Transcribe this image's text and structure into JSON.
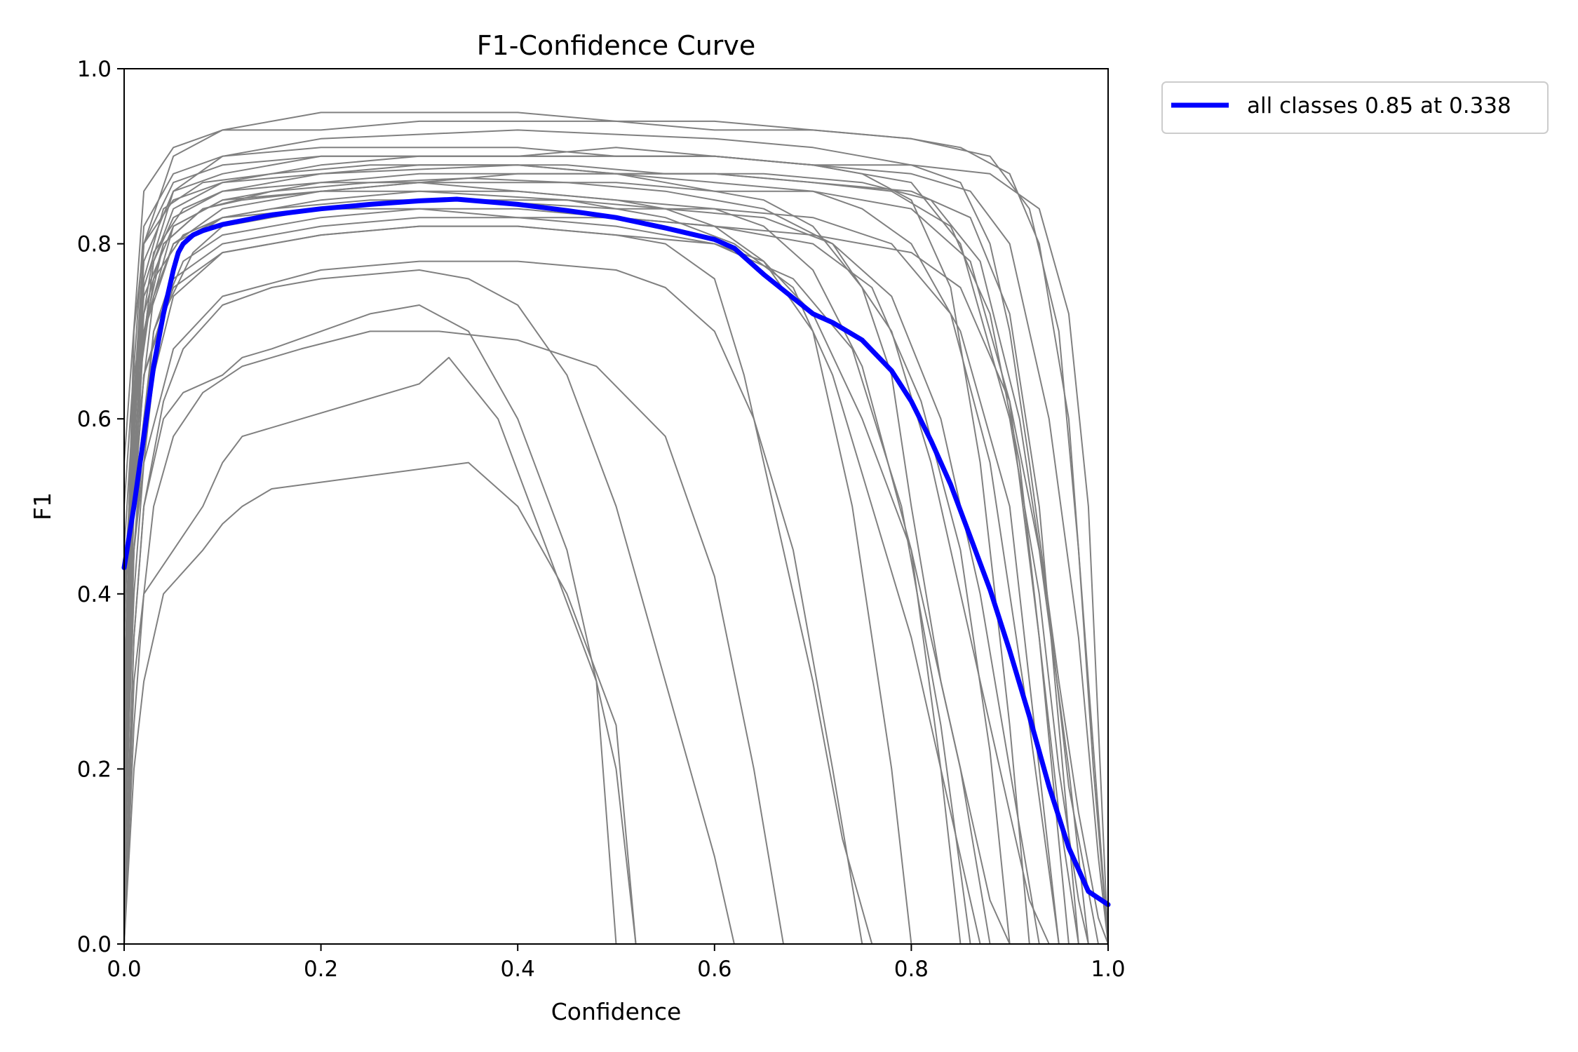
{
  "chart_data": {
    "type": "line",
    "title": "F1-Confidence Curve",
    "xlabel": "Confidence",
    "ylabel": "F1",
    "xlim": [
      0.0,
      1.0
    ],
    "ylim": [
      0.0,
      1.0
    ],
    "x_ticks": [
      "0.0",
      "0.2",
      "0.4",
      "0.6",
      "0.8",
      "1.0"
    ],
    "y_ticks": [
      "0.0",
      "0.2",
      "0.4",
      "0.6",
      "0.8",
      "1.0"
    ],
    "grid": false,
    "legend_position": "outside-upper-right",
    "legend": [
      "all classes 0.85 at 0.338"
    ],
    "colors": {
      "class_curves": "#808080",
      "all_classes": "#0000ff"
    },
    "series": [
      {
        "name": "all classes 0.85 at 0.338",
        "x": [
          0.0,
          0.01,
          0.02,
          0.03,
          0.04,
          0.05,
          0.055,
          0.06,
          0.07,
          0.08,
          0.1,
          0.15,
          0.2,
          0.25,
          0.3,
          0.338,
          0.4,
          0.45,
          0.5,
          0.55,
          0.6,
          0.62,
          0.65,
          0.7,
          0.72,
          0.75,
          0.78,
          0.8,
          0.82,
          0.84,
          0.86,
          0.88,
          0.9,
          0.92,
          0.94,
          0.96,
          0.98,
          1.0
        ],
        "y": [
          0.43,
          0.5,
          0.58,
          0.66,
          0.72,
          0.77,
          0.79,
          0.8,
          0.81,
          0.815,
          0.822,
          0.833,
          0.84,
          0.845,
          0.849,
          0.851,
          0.845,
          0.838,
          0.83,
          0.818,
          0.805,
          0.795,
          0.765,
          0.72,
          0.71,
          0.69,
          0.655,
          0.62,
          0.575,
          0.525,
          0.465,
          0.405,
          0.335,
          0.26,
          0.18,
          0.11,
          0.06,
          0.045
        ]
      }
    ],
    "class_curves": [
      {
        "x": [
          0.0,
          0.005,
          0.01,
          0.02,
          0.05,
          0.1,
          0.2,
          0.3,
          0.4,
          0.5,
          0.55,
          0.6,
          0.65,
          0.7,
          0.75,
          0.78,
          0.8,
          0.83,
          0.86,
          0.88,
          0.9
        ],
        "y": [
          0.0,
          0.5,
          0.7,
          0.8,
          0.85,
          0.87,
          0.88,
          0.885,
          0.89,
          0.88,
          0.87,
          0.86,
          0.85,
          0.82,
          0.75,
          0.65,
          0.5,
          0.3,
          0.15,
          0.05,
          0.0
        ]
      },
      {
        "x": [
          0.0,
          0.01,
          0.03,
          0.05,
          0.1,
          0.2,
          0.3,
          0.4,
          0.5,
          0.6,
          0.7,
          0.8,
          0.85,
          0.9,
          0.93,
          0.95,
          0.97,
          0.98
        ],
        "y": [
          0.1,
          0.6,
          0.78,
          0.84,
          0.87,
          0.89,
          0.9,
          0.9,
          0.91,
          0.9,
          0.89,
          0.87,
          0.8,
          0.6,
          0.4,
          0.2,
          0.05,
          0.0
        ]
      },
      {
        "x": [
          0.0,
          0.01,
          0.02,
          0.04,
          0.08,
          0.15,
          0.25,
          0.35,
          0.45,
          0.55,
          0.65,
          0.72,
          0.78,
          0.82,
          0.86,
          0.9,
          0.92,
          0.94
        ],
        "y": [
          0.2,
          0.55,
          0.72,
          0.8,
          0.84,
          0.86,
          0.87,
          0.875,
          0.87,
          0.86,
          0.84,
          0.8,
          0.7,
          0.55,
          0.35,
          0.15,
          0.05,
          0.0
        ]
      },
      {
        "x": [
          0.0,
          0.02,
          0.05,
          0.1,
          0.2,
          0.4,
          0.6,
          0.7,
          0.75,
          0.8,
          0.85,
          0.88,
          0.9,
          0.92,
          0.95,
          0.97,
          0.99,
          1.0
        ],
        "y": [
          0.3,
          0.75,
          0.86,
          0.9,
          0.92,
          0.93,
          0.92,
          0.91,
          0.9,
          0.89,
          0.87,
          0.8,
          0.7,
          0.55,
          0.3,
          0.15,
          0.03,
          0.0
        ]
      },
      {
        "x": [
          0.0,
          0.01,
          0.03,
          0.06,
          0.1,
          0.2,
          0.3,
          0.45,
          0.55,
          0.62,
          0.68,
          0.72,
          0.76,
          0.8,
          0.84,
          0.87
        ],
        "y": [
          0.05,
          0.45,
          0.7,
          0.8,
          0.83,
          0.85,
          0.86,
          0.85,
          0.83,
          0.8,
          0.75,
          0.65,
          0.5,
          0.35,
          0.15,
          0.0
        ]
      },
      {
        "x": [
          0.0,
          0.02,
          0.05,
          0.1,
          0.15,
          0.2,
          0.3,
          0.4,
          0.5,
          0.6,
          0.7,
          0.8,
          0.85,
          0.9,
          0.93,
          0.96,
          0.98,
          1.0
        ],
        "y": [
          0.4,
          0.8,
          0.9,
          0.93,
          0.94,
          0.95,
          0.95,
          0.95,
          0.94,
          0.94,
          0.93,
          0.92,
          0.91,
          0.88,
          0.8,
          0.6,
          0.3,
          0.0
        ]
      },
      {
        "x": [
          0.0,
          0.01,
          0.02,
          0.05,
          0.1,
          0.2,
          0.3,
          0.4,
          0.5,
          0.55,
          0.6,
          0.63,
          0.66,
          0.7,
          0.73,
          0.76
        ],
        "y": [
          0.15,
          0.5,
          0.65,
          0.75,
          0.79,
          0.81,
          0.82,
          0.82,
          0.81,
          0.8,
          0.76,
          0.65,
          0.5,
          0.3,
          0.12,
          0.0
        ]
      },
      {
        "x": [
          0.0,
          0.01,
          0.03,
          0.05,
          0.1,
          0.2,
          0.3,
          0.4,
          0.5,
          0.6,
          0.7,
          0.75,
          0.8,
          0.85,
          0.9,
          0.92,
          0.95
        ],
        "y": [
          0.25,
          0.6,
          0.78,
          0.83,
          0.86,
          0.88,
          0.89,
          0.89,
          0.88,
          0.87,
          0.86,
          0.84,
          0.8,
          0.7,
          0.5,
          0.3,
          0.0
        ]
      },
      {
        "x": [
          0.0,
          0.005,
          0.01,
          0.02,
          0.04,
          0.06,
          0.1,
          0.12,
          0.15,
          0.2,
          0.25,
          0.3,
          0.35,
          0.4,
          0.45,
          0.5,
          0.52
        ],
        "y": [
          0.0,
          0.2,
          0.35,
          0.5,
          0.6,
          0.63,
          0.65,
          0.67,
          0.68,
          0.7,
          0.72,
          0.73,
          0.7,
          0.6,
          0.45,
          0.2,
          0.0
        ]
      },
      {
        "x": [
          0.0,
          0.01,
          0.02,
          0.05,
          0.08,
          0.1,
          0.12,
          0.3,
          0.33,
          0.38,
          0.43,
          0.48,
          0.5
        ],
        "y": [
          0.0,
          0.3,
          0.4,
          0.45,
          0.5,
          0.55,
          0.58,
          0.64,
          0.67,
          0.6,
          0.45,
          0.3,
          0.0
        ]
      },
      {
        "x": [
          0.0,
          0.01,
          0.02,
          0.04,
          0.08,
          0.1,
          0.12,
          0.15,
          0.35,
          0.4,
          0.45,
          0.5,
          0.52
        ],
        "y": [
          0.0,
          0.2,
          0.3,
          0.4,
          0.45,
          0.48,
          0.5,
          0.52,
          0.55,
          0.5,
          0.4,
          0.25,
          0.0
        ]
      },
      {
        "x": [
          0.0,
          0.01,
          0.03,
          0.06,
          0.1,
          0.2,
          0.3,
          0.4,
          0.5,
          0.55,
          0.6,
          0.65,
          0.7,
          0.74,
          0.78,
          0.8
        ],
        "y": [
          0.35,
          0.65,
          0.79,
          0.84,
          0.86,
          0.87,
          0.87,
          0.86,
          0.85,
          0.84,
          0.82,
          0.78,
          0.7,
          0.5,
          0.2,
          0.0
        ]
      },
      {
        "x": [
          0.0,
          0.01,
          0.02,
          0.05,
          0.1,
          0.2,
          0.3,
          0.4,
          0.5,
          0.6,
          0.7,
          0.78,
          0.84,
          0.88,
          0.91,
          0.93,
          0.95,
          0.97
        ],
        "y": [
          0.2,
          0.55,
          0.7,
          0.8,
          0.84,
          0.86,
          0.87,
          0.88,
          0.88,
          0.88,
          0.87,
          0.86,
          0.82,
          0.72,
          0.55,
          0.35,
          0.15,
          0.0
        ]
      },
      {
        "x": [
          0.0,
          0.02,
          0.04,
          0.08,
          0.12,
          0.2,
          0.3,
          0.4,
          0.5,
          0.6,
          0.65,
          0.7,
          0.75,
          0.8,
          0.83,
          0.85
        ],
        "y": [
          0.3,
          0.7,
          0.8,
          0.84,
          0.85,
          0.86,
          0.86,
          0.86,
          0.85,
          0.84,
          0.82,
          0.77,
          0.66,
          0.45,
          0.2,
          0.0
        ]
      },
      {
        "x": [
          0.0,
          0.01,
          0.02,
          0.04,
          0.07,
          0.1,
          0.2,
          0.3,
          0.45,
          0.55,
          0.65,
          0.72,
          0.78,
          0.83,
          0.87,
          0.9,
          0.93
        ],
        "y": [
          0.1,
          0.45,
          0.6,
          0.72,
          0.79,
          0.82,
          0.84,
          0.85,
          0.85,
          0.84,
          0.83,
          0.8,
          0.74,
          0.6,
          0.4,
          0.2,
          0.0
        ]
      },
      {
        "x": [
          0.0,
          0.02,
          0.05,
          0.1,
          0.2,
          0.3,
          0.4,
          0.5,
          0.6,
          0.7,
          0.8,
          0.86,
          0.9,
          0.94,
          0.97,
          0.99,
          1.0
        ],
        "y": [
          0.45,
          0.8,
          0.87,
          0.89,
          0.9,
          0.9,
          0.9,
          0.9,
          0.9,
          0.89,
          0.88,
          0.86,
          0.8,
          0.6,
          0.35,
          0.1,
          0.0
        ]
      },
      {
        "x": [
          0.0,
          0.01,
          0.03,
          0.06,
          0.1,
          0.15,
          0.25,
          0.35,
          0.5,
          0.6,
          0.7,
          0.78,
          0.84,
          0.88,
          0.92,
          0.95
        ],
        "y": [
          0.25,
          0.6,
          0.76,
          0.81,
          0.83,
          0.84,
          0.85,
          0.85,
          0.84,
          0.84,
          0.83,
          0.8,
          0.72,
          0.55,
          0.25,
          0.0
        ]
      },
      {
        "x": [
          0.0,
          0.01,
          0.02,
          0.05,
          0.1,
          0.2,
          0.3,
          0.4,
          0.5,
          0.6,
          0.7,
          0.8,
          0.85,
          0.9,
          0.93,
          0.96,
          0.98
        ],
        "y": [
          0.15,
          0.5,
          0.65,
          0.76,
          0.8,
          0.82,
          0.83,
          0.83,
          0.83,
          0.82,
          0.81,
          0.79,
          0.75,
          0.62,
          0.45,
          0.2,
          0.0
        ]
      },
      {
        "x": [
          0.0,
          0.02,
          0.05,
          0.1,
          0.2,
          0.3,
          0.4,
          0.5,
          0.6,
          0.7,
          0.75,
          0.8,
          0.84,
          0.87,
          0.9,
          0.92
        ],
        "y": [
          0.5,
          0.82,
          0.88,
          0.9,
          0.91,
          0.91,
          0.91,
          0.9,
          0.9,
          0.89,
          0.88,
          0.85,
          0.75,
          0.55,
          0.25,
          0.0
        ]
      },
      {
        "x": [
          0.0,
          0.01,
          0.02,
          0.04,
          0.06,
          0.1,
          0.15,
          0.2,
          0.3,
          0.35,
          0.4,
          0.45,
          0.5,
          0.55,
          0.6,
          0.62
        ],
        "y": [
          0.0,
          0.35,
          0.5,
          0.62,
          0.68,
          0.73,
          0.75,
          0.76,
          0.77,
          0.76,
          0.73,
          0.65,
          0.5,
          0.3,
          0.1,
          0.0
        ]
      },
      {
        "x": [
          0.0,
          0.01,
          0.03,
          0.05,
          0.1,
          0.2,
          0.3,
          0.4,
          0.5,
          0.6,
          0.65,
          0.7,
          0.75,
          0.8,
          0.85,
          0.88
        ],
        "y": [
          0.2,
          0.55,
          0.74,
          0.8,
          0.83,
          0.84,
          0.84,
          0.83,
          0.82,
          0.8,
          0.78,
          0.72,
          0.6,
          0.45,
          0.2,
          0.0
        ]
      },
      {
        "x": [
          0.0,
          0.02,
          0.04,
          0.08,
          0.15,
          0.25,
          0.35,
          0.45,
          0.55,
          0.65,
          0.75,
          0.82,
          0.87,
          0.91,
          0.94,
          0.96,
          0.99
        ],
        "y": [
          0.38,
          0.76,
          0.84,
          0.87,
          0.88,
          0.89,
          0.89,
          0.89,
          0.88,
          0.88,
          0.87,
          0.85,
          0.78,
          0.6,
          0.38,
          0.18,
          0.0
        ]
      },
      {
        "x": [
          0.0,
          0.01,
          0.02,
          0.05,
          0.1,
          0.2,
          0.3,
          0.4,
          0.5,
          0.55,
          0.6,
          0.64,
          0.68,
          0.72,
          0.75
        ],
        "y": [
          0.1,
          0.4,
          0.55,
          0.68,
          0.74,
          0.77,
          0.78,
          0.78,
          0.77,
          0.75,
          0.7,
          0.6,
          0.45,
          0.2,
          0.0
        ]
      },
      {
        "x": [
          0.0,
          0.02,
          0.05,
          0.1,
          0.2,
          0.3,
          0.4,
          0.5,
          0.6,
          0.7,
          0.8,
          0.88,
          0.93,
          0.96,
          0.98,
          0.99,
          1.0
        ],
        "y": [
          0.4,
          0.78,
          0.86,
          0.88,
          0.9,
          0.9,
          0.9,
          0.9,
          0.9,
          0.89,
          0.89,
          0.88,
          0.84,
          0.72,
          0.5,
          0.25,
          0.0
        ]
      },
      {
        "x": [
          0.0,
          0.01,
          0.03,
          0.06,
          0.1,
          0.2,
          0.3,
          0.4,
          0.5,
          0.6,
          0.7,
          0.76,
          0.81,
          0.85,
          0.88,
          0.9
        ],
        "y": [
          0.2,
          0.5,
          0.7,
          0.78,
          0.81,
          0.83,
          0.84,
          0.84,
          0.83,
          0.82,
          0.8,
          0.75,
          0.62,
          0.45,
          0.22,
          0.0
        ]
      },
      {
        "x": [
          0.0,
          0.01,
          0.02,
          0.05,
          0.1,
          0.2,
          0.3,
          0.4,
          0.5,
          0.6,
          0.7,
          0.8,
          0.86,
          0.9,
          0.93,
          0.96
        ],
        "y": [
          0.3,
          0.62,
          0.74,
          0.82,
          0.85,
          0.86,
          0.87,
          0.87,
          0.87,
          0.86,
          0.86,
          0.84,
          0.78,
          0.62,
          0.35,
          0.0
        ]
      },
      {
        "x": [
          0.0,
          0.01,
          0.02,
          0.03,
          0.05,
          0.08,
          0.12,
          0.18,
          0.25,
          0.32,
          0.4,
          0.48,
          0.55,
          0.6,
          0.64,
          0.67
        ],
        "y": [
          0.0,
          0.25,
          0.4,
          0.5,
          0.58,
          0.63,
          0.66,
          0.68,
          0.7,
          0.7,
          0.69,
          0.66,
          0.58,
          0.42,
          0.2,
          0.0
        ]
      },
      {
        "x": [
          0.0,
          0.02,
          0.05,
          0.1,
          0.2,
          0.3,
          0.4,
          0.5,
          0.6,
          0.7,
          0.8,
          0.86,
          0.9,
          0.93,
          0.95,
          0.97
        ],
        "y": [
          0.32,
          0.7,
          0.82,
          0.85,
          0.87,
          0.88,
          0.88,
          0.88,
          0.88,
          0.87,
          0.86,
          0.83,
          0.72,
          0.5,
          0.25,
          0.0
        ]
      },
      {
        "x": [
          0.0,
          0.01,
          0.03,
          0.05,
          0.1,
          0.2,
          0.3,
          0.4,
          0.5,
          0.6,
          0.68,
          0.74,
          0.79,
          0.83,
          0.86
        ],
        "y": [
          0.15,
          0.45,
          0.65,
          0.74,
          0.79,
          0.81,
          0.82,
          0.82,
          0.81,
          0.8,
          0.76,
          0.68,
          0.5,
          0.25,
          0.0
        ]
      },
      {
        "x": [
          0.0,
          0.02,
          0.05,
          0.1,
          0.2,
          0.3,
          0.4,
          0.5,
          0.6,
          0.7,
          0.8,
          0.88,
          0.92,
          0.95,
          0.97,
          0.985,
          1.0
        ],
        "y": [
          0.55,
          0.86,
          0.91,
          0.93,
          0.93,
          0.94,
          0.94,
          0.94,
          0.93,
          0.93,
          0.92,
          0.9,
          0.84,
          0.7,
          0.45,
          0.2,
          0.0
        ]
      }
    ]
  }
}
